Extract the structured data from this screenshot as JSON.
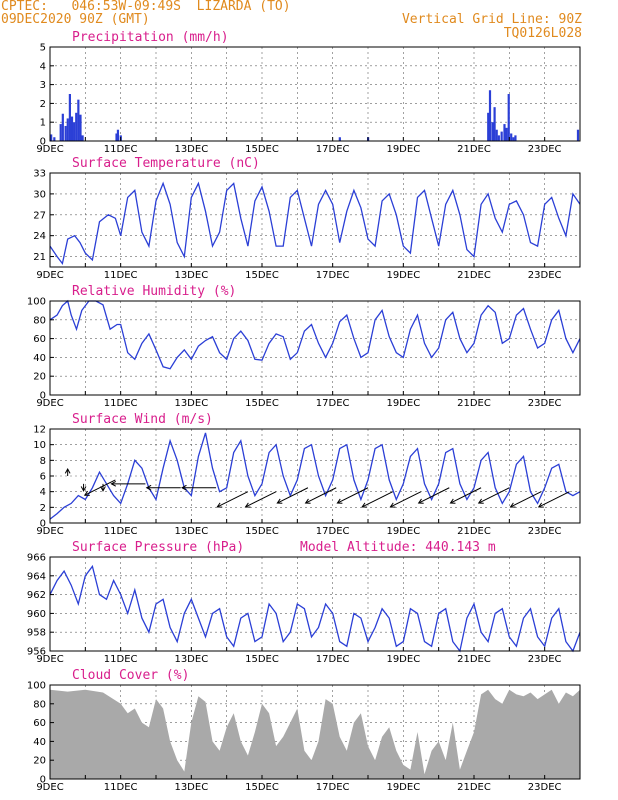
{
  "header": {
    "line1": "CPTEC:   046:53W-09:49S  LIZARDA (TO)",
    "line2": "09DEC2020 90Z (GMT)",
    "grid_note": "Vertical Grid Line: 90Z",
    "code": "TQ0126L028"
  },
  "x_labels": [
    "9DEC",
    "11DEC",
    "13DEC",
    "15DEC",
    "17DEC",
    "19DEC",
    "21DEC",
    "23DEC"
  ],
  "colors": {
    "header": "#e08a1e",
    "title": "#d81e8c",
    "line": "#2b3fd6",
    "cloud": "#a9a9a9",
    "arrow": "#000000"
  },
  "chart_data": [
    {
      "type": "bar",
      "title": "Precipitation (mm/h)",
      "ylim": [
        0,
        5
      ],
      "yticks": [
        0,
        1,
        2,
        3,
        4,
        5
      ],
      "x_days": [
        0.03,
        0.12,
        0.3,
        0.36,
        0.44,
        0.5,
        0.56,
        0.62,
        0.68,
        0.74,
        0.8,
        0.86,
        0.92,
        1.88,
        1.92,
        2.0,
        8.2,
        9.0,
        12.4,
        12.45,
        12.52,
        12.58,
        12.64,
        12.7,
        12.78,
        12.86,
        12.92,
        12.98,
        13.05,
        13.11,
        13.17,
        14.94
      ],
      "values": [
        0.35,
        0.2,
        0.9,
        1.45,
        0.8,
        1.2,
        2.5,
        1.3,
        1.0,
        1.5,
        2.2,
        1.4,
        0.3,
        0.4,
        0.6,
        0.3,
        0.2,
        0.2,
        1.5,
        2.7,
        1.0,
        1.8,
        0.6,
        0.3,
        0.5,
        0.9,
        0.7,
        2.5,
        0.4,
        0.2,
        0.3,
        0.6
      ]
    },
    {
      "type": "line",
      "title": "Surface Temperature (nC)",
      "ylim": [
        19.5,
        33
      ],
      "yticks": [
        21,
        24,
        27,
        30,
        33
      ],
      "x_days": [
        0,
        0.2,
        0.35,
        0.5,
        0.7,
        0.85,
        1.0,
        1.2,
        1.4,
        1.65,
        1.85,
        2.0,
        2.2,
        2.4,
        2.6,
        2.8,
        3.0,
        3.2,
        3.4,
        3.6,
        3.8,
        4.0,
        4.2,
        4.4,
        4.6,
        4.8,
        5.0,
        5.2,
        5.4,
        5.6,
        5.8,
        6.0,
        6.2,
        6.4,
        6.6,
        6.8,
        7.0,
        7.2,
        7.4,
        7.6,
        7.8,
        8.0,
        8.2,
        8.4,
        8.6,
        8.8,
        9.0,
        9.2,
        9.4,
        9.6,
        9.8,
        10.0,
        10.2,
        10.4,
        10.6,
        10.8,
        11.0,
        11.2,
        11.4,
        11.6,
        11.8,
        12.0,
        12.2,
        12.4,
        12.6,
        12.8,
        13.0,
        13.2,
        13.4,
        13.6,
        13.8,
        14.0,
        14.2,
        14.4,
        14.6,
        14.8,
        15.0
      ],
      "values": [
        22.5,
        21,
        20,
        23.5,
        24,
        23,
        21.5,
        20.5,
        26,
        27,
        26.5,
        24,
        29.5,
        30.5,
        24.5,
        22.5,
        29,
        31.5,
        28.5,
        23,
        21,
        29.5,
        31.5,
        27.5,
        22.5,
        24.5,
        30.5,
        31.5,
        26.5,
        22.5,
        29,
        31,
        27.5,
        22.5,
        22.5,
        29.5,
        30.5,
        26.5,
        22.5,
        28.5,
        30.5,
        28.5,
        23,
        27.5,
        30.5,
        28,
        23.5,
        22.5,
        29,
        30,
        27,
        22.5,
        21.5,
        29.5,
        30.5,
        26.5,
        22.5,
        28.5,
        30.5,
        27,
        22,
        21,
        28.5,
        30,
        26.5,
        24.5,
        28.5,
        29,
        27,
        23,
        22.5,
        28.5,
        29.5,
        26.5,
        24,
        30,
        28.5
      ]
    },
    {
      "type": "line",
      "title": "Relative Humidity (%)",
      "ylim": [
        0,
        100
      ],
      "yticks": [
        0,
        20,
        40,
        60,
        80,
        100
      ],
      "x_days": [
        0,
        0.2,
        0.35,
        0.5,
        0.6,
        0.75,
        0.9,
        1.1,
        1.3,
        1.5,
        1.7,
        1.9,
        2.0,
        2.2,
        2.4,
        2.6,
        2.8,
        3.0,
        3.2,
        3.4,
        3.6,
        3.8,
        4.0,
        4.2,
        4.4,
        4.6,
        4.8,
        5.0,
        5.2,
        5.4,
        5.6,
        5.8,
        6.0,
        6.2,
        6.4,
        6.6,
        6.8,
        7.0,
        7.2,
        7.4,
        7.6,
        7.8,
        8.0,
        8.2,
        8.4,
        8.6,
        8.8,
        9.0,
        9.2,
        9.4,
        9.6,
        9.8,
        10.0,
        10.2,
        10.4,
        10.6,
        10.8,
        11.0,
        11.2,
        11.4,
        11.6,
        11.8,
        12.0,
        12.2,
        12.4,
        12.6,
        12.8,
        13.0,
        13.2,
        13.4,
        13.6,
        13.8,
        14.0,
        14.2,
        14.4,
        14.6,
        14.8,
        15.0
      ],
      "values": [
        80,
        85,
        95,
        100,
        85,
        70,
        90,
        100,
        100,
        96,
        70,
        75,
        75,
        45,
        38,
        55,
        65,
        48,
        30,
        28,
        40,
        48,
        38,
        52,
        58,
        62,
        45,
        38,
        60,
        68,
        58,
        38,
        37,
        55,
        65,
        62,
        38,
        45,
        68,
        75,
        55,
        40,
        55,
        78,
        85,
        60,
        40,
        45,
        80,
        90,
        62,
        45,
        40,
        70,
        85,
        55,
        40,
        50,
        80,
        88,
        60,
        45,
        55,
        85,
        95,
        88,
        55,
        60,
        85,
        92,
        70,
        50,
        55,
        80,
        90,
        60,
        45,
        60
      ]
    },
    {
      "type": "line",
      "title": "Surface Wind (m/s)",
      "ylim": [
        0,
        12
      ],
      "yticks": [
        0,
        2,
        4,
        6,
        8,
        10,
        12
      ],
      "x_days": [
        0,
        0.2,
        0.4,
        0.6,
        0.8,
        1.0,
        1.2,
        1.4,
        1.6,
        1.8,
        2.0,
        2.2,
        2.4,
        2.6,
        2.8,
        3.0,
        3.2,
        3.4,
        3.6,
        3.8,
        4.0,
        4.2,
        4.4,
        4.6,
        4.8,
        5.0,
        5.2,
        5.4,
        5.6,
        5.8,
        6.0,
        6.2,
        6.4,
        6.6,
        6.8,
        7.0,
        7.2,
        7.4,
        7.6,
        7.8,
        8.0,
        8.2,
        8.4,
        8.6,
        8.8,
        9.0,
        9.2,
        9.4,
        9.6,
        9.8,
        10.0,
        10.2,
        10.4,
        10.6,
        10.8,
        11.0,
        11.2,
        11.4,
        11.6,
        11.8,
        12.0,
        12.2,
        12.4,
        12.6,
        12.8,
        13.0,
        13.2,
        13.4,
        13.6,
        13.8,
        14.0,
        14.2,
        14.4,
        14.6,
        14.8,
        15.0
      ],
      "values": [
        0.5,
        1.2,
        2.0,
        2.5,
        3.5,
        3.0,
        4.5,
        6.5,
        5.0,
        3.5,
        2.5,
        5.0,
        8.0,
        7.0,
        4.5,
        3.0,
        7.0,
        10.5,
        8.0,
        4.5,
        3.5,
        8.5,
        11.5,
        7.0,
        4.0,
        4.5,
        9.0,
        10.5,
        6.0,
        3.5,
        5.0,
        9.0,
        10.0,
        6.0,
        3.5,
        5.5,
        9.5,
        10.0,
        6.0,
        3.5,
        5.5,
        9.5,
        10.0,
        5.5,
        3.0,
        5.5,
        9.5,
        10.0,
        5.5,
        3.0,
        5.0,
        8.5,
        9.5,
        5.0,
        3.0,
        5.0,
        9.0,
        9.5,
        5.0,
        3.0,
        4.5,
        8.0,
        9.0,
        4.5,
        2.5,
        4.0,
        7.5,
        8.5,
        4.0,
        2.5,
        4.5,
        7.0,
        7.5,
        4.0,
        3.5,
        4.0
      ]
    },
    {
      "type": "line",
      "title": "Surface Pressure (hPa)",
      "annotation": "Model Altitude: 440.143 m",
      "ylim": [
        956,
        966
      ],
      "yticks": [
        956,
        958,
        960,
        962,
        964,
        966
      ],
      "x_days": [
        0,
        0.2,
        0.4,
        0.6,
        0.8,
        1.0,
        1.2,
        1.4,
        1.6,
        1.8,
        2.0,
        2.2,
        2.4,
        2.6,
        2.8,
        3.0,
        3.2,
        3.4,
        3.6,
        3.8,
        4.0,
        4.2,
        4.4,
        4.6,
        4.8,
        5.0,
        5.2,
        5.4,
        5.6,
        5.8,
        6.0,
        6.2,
        6.4,
        6.6,
        6.8,
        7.0,
        7.2,
        7.4,
        7.6,
        7.8,
        8.0,
        8.2,
        8.4,
        8.6,
        8.8,
        9.0,
        9.2,
        9.4,
        9.6,
        9.8,
        10.0,
        10.2,
        10.4,
        10.6,
        10.8,
        11.0,
        11.2,
        11.4,
        11.6,
        11.8,
        12.0,
        12.2,
        12.4,
        12.6,
        12.8,
        13.0,
        13.2,
        13.4,
        13.6,
        13.8,
        14.0,
        14.2,
        14.4,
        14.6,
        14.8,
        15.0
      ],
      "values": [
        962,
        963.5,
        964.5,
        963,
        961,
        964,
        965,
        962,
        961.5,
        963.5,
        962,
        960,
        962.5,
        959.5,
        958,
        961,
        961.5,
        958.5,
        957,
        960,
        961.5,
        959.5,
        957.5,
        960,
        960.5,
        957.5,
        956.5,
        959.5,
        960,
        957,
        957.5,
        961,
        960,
        957,
        958,
        961,
        960.5,
        957.5,
        958.5,
        961,
        960,
        957,
        956.5,
        960,
        959.5,
        957,
        958.5,
        960.5,
        959.5,
        956.5,
        957,
        960.5,
        960,
        957,
        956.5,
        960,
        960.5,
        957,
        956,
        959.5,
        961,
        958,
        957,
        960,
        960.5,
        957.5,
        956.5,
        959.5,
        960.5,
        957.5,
        956.5,
        959.5,
        960.5,
        957,
        956,
        958
      ]
    },
    {
      "type": "area",
      "title": "Cloud Cover (%)",
      "ylim": [
        0,
        100
      ],
      "yticks": [
        0,
        20,
        40,
        60,
        80,
        100
      ],
      "x_days": [
        0,
        0.5,
        1.0,
        1.5,
        2.0,
        2.2,
        2.4,
        2.6,
        2.8,
        3.0,
        3.2,
        3.4,
        3.6,
        3.8,
        4.0,
        4.2,
        4.4,
        4.6,
        4.8,
        5.0,
        5.2,
        5.4,
        5.6,
        5.8,
        6.0,
        6.2,
        6.4,
        6.6,
        6.8,
        7.0,
        7.2,
        7.4,
        7.6,
        7.8,
        8.0,
        8.2,
        8.4,
        8.6,
        8.8,
        9.0,
        9.2,
        9.4,
        9.6,
        9.8,
        10.0,
        10.2,
        10.4,
        10.6,
        10.8,
        11.0,
        11.2,
        11.4,
        11.6,
        11.8,
        12.0,
        12.2,
        12.4,
        12.6,
        12.8,
        13.0,
        13.2,
        13.4,
        13.6,
        13.8,
        14.0,
        14.2,
        14.4,
        14.6,
        14.8,
        15.0
      ],
      "values": [
        95,
        93,
        95,
        92,
        80,
        70,
        75,
        60,
        55,
        85,
        75,
        40,
        20,
        8,
        60,
        88,
        82,
        40,
        30,
        55,
        70,
        40,
        25,
        50,
        80,
        70,
        35,
        45,
        60,
        75,
        30,
        20,
        40,
        85,
        80,
        45,
        30,
        60,
        70,
        35,
        20,
        45,
        55,
        30,
        15,
        10,
        50,
        5,
        30,
        40,
        20,
        60,
        10,
        30,
        50,
        90,
        95,
        85,
        80,
        95,
        90,
        88,
        92,
        85,
        90,
        95,
        80,
        92,
        88,
        95
      ]
    }
  ],
  "wind_arrows": [
    {
      "x_day": 0.5,
      "y": 6,
      "dir": "N"
    },
    {
      "x_day": 0.95,
      "y": 5,
      "dir": "S"
    },
    {
      "x_day": 1.5,
      "y": 5,
      "dir": "S"
    },
    {
      "x_day": 1.85,
      "y": 5.5,
      "dir": "SW"
    },
    {
      "x_day": 2.7,
      "y": 5,
      "dir": "W"
    },
    {
      "x_day": 3.7,
      "y": 4.5,
      "dir": "W"
    },
    {
      "x_day": 4.7,
      "y": 4.5,
      "dir": "W"
    },
    {
      "x_day": 5.6,
      "y": 4,
      "dir": "SW"
    },
    {
      "x_day": 6.4,
      "y": 4,
      "dir": "SW"
    },
    {
      "x_day": 7.3,
      "y": 4.5,
      "dir": "SW"
    },
    {
      "x_day": 8.1,
      "y": 4.5,
      "dir": "SW"
    },
    {
      "x_day": 9.0,
      "y": 4.5,
      "dir": "SW"
    },
    {
      "x_day": 9.7,
      "y": 4.0,
      "dir": "SW"
    },
    {
      "x_day": 10.5,
      "y": 4.0,
      "dir": "SW"
    },
    {
      "x_day": 11.3,
      "y": 4.5,
      "dir": "SW"
    },
    {
      "x_day": 12.2,
      "y": 4.5,
      "dir": "SW"
    },
    {
      "x_day": 13.0,
      "y": 4.5,
      "dir": "SW"
    },
    {
      "x_day": 13.9,
      "y": 4.0,
      "dir": "SW"
    },
    {
      "x_day": 14.7,
      "y": 4.0,
      "dir": "SW"
    }
  ]
}
